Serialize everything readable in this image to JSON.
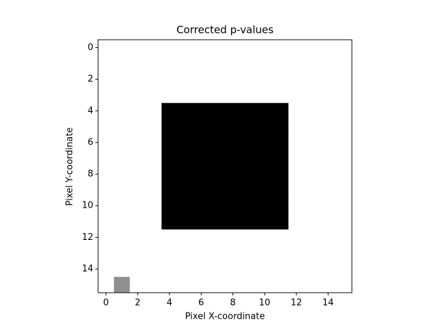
{
  "chart_data": {
    "type": "heatmap",
    "title": "Corrected p-values",
    "x_label": "Pixel X-coordinate",
    "y_label": "Pixel Y-coordinate",
    "cmap": "gray",
    "zlim": [
      0,
      1
    ],
    "xlim": [
      -0.5,
      15.5
    ],
    "ylim": [
      15.5,
      -0.5
    ],
    "xticks": [
      0,
      2,
      4,
      6,
      8,
      10,
      12,
      14
    ],
    "yticks": [
      0,
      2,
      4,
      6,
      8,
      10,
      12,
      14
    ],
    "z": [
      [
        1,
        1,
        1,
        1,
        1,
        1,
        1,
        1,
        1,
        1,
        1,
        1,
        1,
        1,
        1,
        1
      ],
      [
        1,
        1,
        1,
        1,
        1,
        1,
        1,
        1,
        1,
        1,
        1,
        1,
        1,
        1,
        1,
        1
      ],
      [
        1,
        1,
        1,
        1,
        1,
        1,
        1,
        1,
        1,
        1,
        1,
        1,
        1,
        1,
        1,
        1
      ],
      [
        1,
        1,
        1,
        1,
        1,
        1,
        1,
        1,
        1,
        1,
        1,
        1,
        1,
        1,
        1,
        1
      ],
      [
        1,
        1,
        1,
        1,
        0,
        0,
        0,
        0,
        0,
        0,
        0,
        0,
        1,
        1,
        1,
        1
      ],
      [
        1,
        1,
        1,
        1,
        0,
        0,
        0,
        0,
        0,
        0,
        0,
        0,
        1,
        1,
        1,
        1
      ],
      [
        1,
        1,
        1,
        1,
        0,
        0,
        0,
        0,
        0,
        0,
        0,
        0,
        1,
        1,
        1,
        1
      ],
      [
        1,
        1,
        1,
        1,
        0,
        0,
        0,
        0,
        0,
        0,
        0,
        0,
        1,
        1,
        1,
        1
      ],
      [
        1,
        1,
        1,
        1,
        0,
        0,
        0,
        0,
        0,
        0,
        0,
        0,
        1,
        1,
        1,
        1
      ],
      [
        1,
        1,
        1,
        1,
        0,
        0,
        0,
        0,
        0,
        0,
        0,
        0,
        1,
        1,
        1,
        1
      ],
      [
        1,
        1,
        1,
        1,
        0,
        0,
        0,
        0,
        0,
        0,
        0,
        0,
        1,
        1,
        1,
        1
      ],
      [
        1,
        1,
        1,
        1,
        0,
        0,
        0,
        0,
        0,
        0,
        0,
        0,
        1,
        1,
        1,
        1
      ],
      [
        1,
        1,
        1,
        1,
        1,
        1,
        1,
        1,
        1,
        1,
        1,
        1,
        1,
        1,
        1,
        1
      ],
      [
        1,
        1,
        1,
        1,
        1,
        1,
        1,
        1,
        1,
        1,
        1,
        1,
        1,
        1,
        1,
        1
      ],
      [
        1,
        1,
        1,
        1,
        1,
        1,
        1,
        1,
        1,
        1,
        1,
        1,
        1,
        1,
        1,
        1
      ],
      [
        1,
        0.56,
        1,
        1,
        1,
        1,
        1,
        1,
        1,
        1,
        1,
        1,
        1,
        1,
        1,
        1
      ]
    ]
  }
}
